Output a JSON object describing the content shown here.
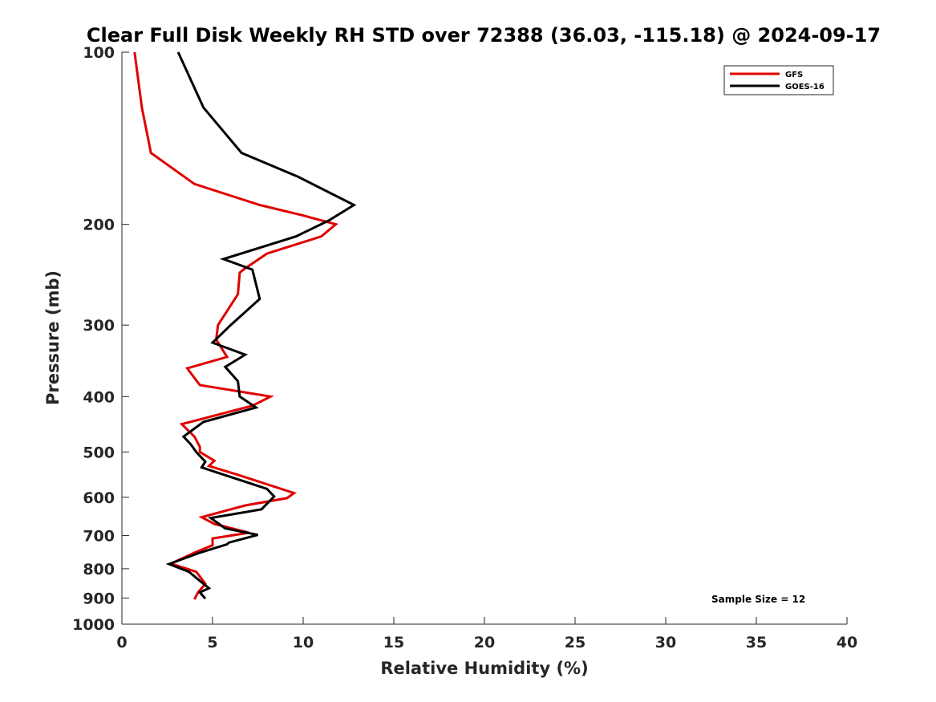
{
  "chart_data": {
    "type": "line",
    "title": "Clear Full Disk Weekly RH STD over 72388 (36.03, -115.18) @ 2024-09-17",
    "xlabel": "Relative Humidity (%)",
    "ylabel": "Pressure (mb)",
    "xlim": [
      0,
      40
    ],
    "ylim": [
      100,
      1000
    ],
    "y_scale": "log",
    "y_reversed": true,
    "x_ticks": [
      "0",
      "5",
      "10",
      "15",
      "20",
      "25",
      "30",
      "35",
      "40"
    ],
    "y_ticks": [
      "100",
      "200",
      "300",
      "400",
      "500",
      "600",
      "700",
      "800",
      "900",
      "1000"
    ],
    "grid": false,
    "legend_position": "top-right",
    "annotation": "Sample Size = 12",
    "series": [
      {
        "name": "GFS",
        "color": "#e00000",
        "points": [
          [
            0.7,
            100
          ],
          [
            1.1,
            125
          ],
          [
            1.6,
            150
          ],
          [
            4.0,
            170
          ],
          [
            7.6,
            185
          ],
          [
            10.0,
            193
          ],
          [
            11.8,
            200
          ],
          [
            11.0,
            210
          ],
          [
            8.0,
            225
          ],
          [
            6.7,
            240
          ],
          [
            6.5,
            243
          ],
          [
            6.4,
            265
          ],
          [
            5.3,
            300
          ],
          [
            5.2,
            318
          ],
          [
            5.8,
            341
          ],
          [
            3.6,
            357
          ],
          [
            4.3,
            382
          ],
          [
            8.2,
            400
          ],
          [
            7.2,
            415
          ],
          [
            3.3,
            447
          ],
          [
            4.0,
            470
          ],
          [
            4.3,
            490
          ],
          [
            4.3,
            500
          ],
          [
            5.1,
            518
          ],
          [
            4.8,
            529
          ],
          [
            6.4,
            548
          ],
          [
            9.5,
            590
          ],
          [
            9.1,
            602
          ],
          [
            6.8,
            620
          ],
          [
            4.4,
            650
          ],
          [
            5.1,
            668
          ],
          [
            7.0,
            692
          ],
          [
            5.0,
            708
          ],
          [
            5.0,
            728
          ],
          [
            4.0,
            750
          ],
          [
            2.7,
            784
          ],
          [
            4.1,
            810
          ],
          [
            4.6,
            850
          ],
          [
            4.2,
            880
          ],
          [
            4.0,
            905
          ]
        ]
      },
      {
        "name": "GOES-16",
        "color": "#000000",
        "points": [
          [
            3.1,
            100
          ],
          [
            4.5,
            125
          ],
          [
            6.6,
            150
          ],
          [
            9.7,
            165
          ],
          [
            12.8,
            185
          ],
          [
            11.4,
            197
          ],
          [
            9.6,
            210
          ],
          [
            5.6,
            230
          ],
          [
            7.2,
            240
          ],
          [
            7.6,
            270
          ],
          [
            6.0,
            300
          ],
          [
            5.0,
            322
          ],
          [
            6.8,
            338
          ],
          [
            5.7,
            355
          ],
          [
            6.4,
            376
          ],
          [
            6.5,
            400
          ],
          [
            7.4,
            418
          ],
          [
            4.5,
            443
          ],
          [
            3.4,
            470
          ],
          [
            3.8,
            485
          ],
          [
            4.1,
            500
          ],
          [
            4.6,
            520
          ],
          [
            4.4,
            532
          ],
          [
            5.4,
            545
          ],
          [
            8.0,
            580
          ],
          [
            8.4,
            598
          ],
          [
            7.7,
            630
          ],
          [
            4.9,
            652
          ],
          [
            5.7,
            680
          ],
          [
            7.5,
            698
          ],
          [
            5.9,
            720
          ],
          [
            5.8,
            725
          ],
          [
            4.3,
            750
          ],
          [
            2.6,
            785
          ],
          [
            3.7,
            810
          ],
          [
            4.3,
            840
          ],
          [
            4.8,
            865
          ],
          [
            4.3,
            880
          ],
          [
            4.6,
            902
          ]
        ]
      }
    ]
  }
}
